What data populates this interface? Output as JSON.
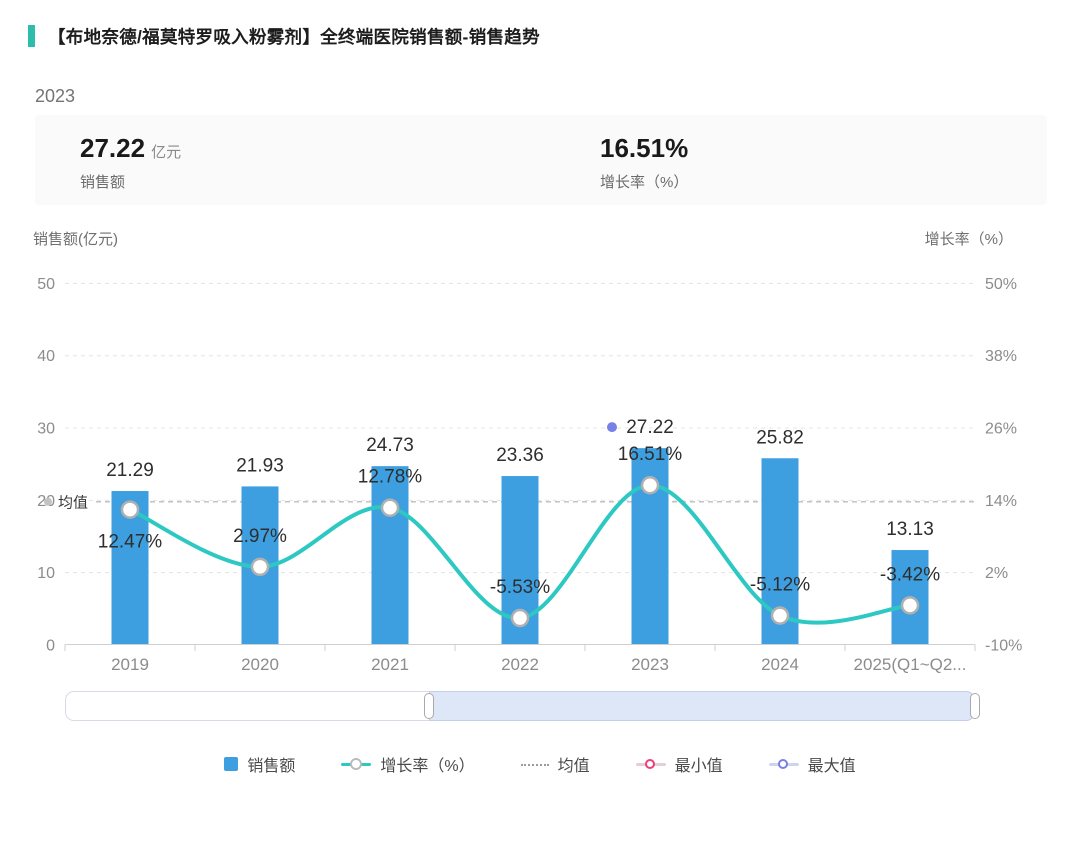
{
  "header": {
    "title": "【布地奈德/福莫特罗吸入粉雾剂】全终端医院销售额-销售趋势",
    "accent_color": "#2CBDAD"
  },
  "period_label": "2023",
  "summary": {
    "sales_value": "27.22",
    "sales_unit": "亿元",
    "sales_label": "销售额",
    "growth_value": "16.51%",
    "growth_label": "增长率（%）"
  },
  "axes": {
    "left_title": "销售额(亿元)",
    "right_title": "增长率（%）"
  },
  "chart_data": {
    "type": "bar",
    "categories": [
      "2019",
      "2020",
      "2021",
      "2022",
      "2023",
      "2024",
      "2025(Q1~Q2..."
    ],
    "series": [
      {
        "name": "销售额",
        "type": "bar",
        "axis": "left",
        "color": "#3D9FE0",
        "values": [
          21.29,
          21.93,
          24.73,
          23.36,
          27.22,
          25.82,
          13.13
        ]
      },
      {
        "name": "增长率（%）",
        "type": "line",
        "axis": "right",
        "color": "#2EC8C3",
        "values": [
          12.47,
          2.97,
          12.78,
          -5.53,
          16.51,
          -5.12,
          -3.42
        ],
        "label_side": [
          "below",
          "above",
          "above",
          "above",
          "above",
          "above",
          "above"
        ]
      }
    ],
    "left_axis": {
      "label": "销售额(亿元)",
      "min": 0,
      "max": 50,
      "ticks": [
        50,
        40,
        30,
        20,
        10,
        0
      ]
    },
    "right_axis": {
      "label": "增长率（%）",
      "min": -10,
      "max": 50,
      "ticks": [
        50,
        38,
        26,
        14,
        2,
        -10
      ],
      "suffix": "%"
    },
    "grid": "dashed",
    "mean_line": {
      "label": "均值",
      "value_left_axis": 19.8
    },
    "max_point": {
      "category": "2023",
      "value": 27.22,
      "marker_color": "#7680E8"
    },
    "title": "【布地奈德/福莫特罗吸入粉雾剂】全终端医院销售额-销售趋势"
  },
  "legend": [
    {
      "label": "销售额"
    },
    {
      "label": "增长率（%）"
    },
    {
      "label": "均值"
    },
    {
      "label": "最小值"
    },
    {
      "label": "最大值"
    }
  ],
  "slider": {
    "window_start_pct": 40,
    "window_end_pct": 100
  },
  "colors": {
    "bar": "#3D9FE0",
    "line": "#2EC8C3",
    "marker_stroke": "#b0b0b0",
    "max_dot": "#7680E8",
    "min_ring": "#EE3F7B",
    "grid": "#e4e4e4",
    "mean": "#bdbdbd",
    "axis_line": "#cfcfcf",
    "tick_text": "#8c8c8c",
    "value_text": "#2e2e2e"
  }
}
